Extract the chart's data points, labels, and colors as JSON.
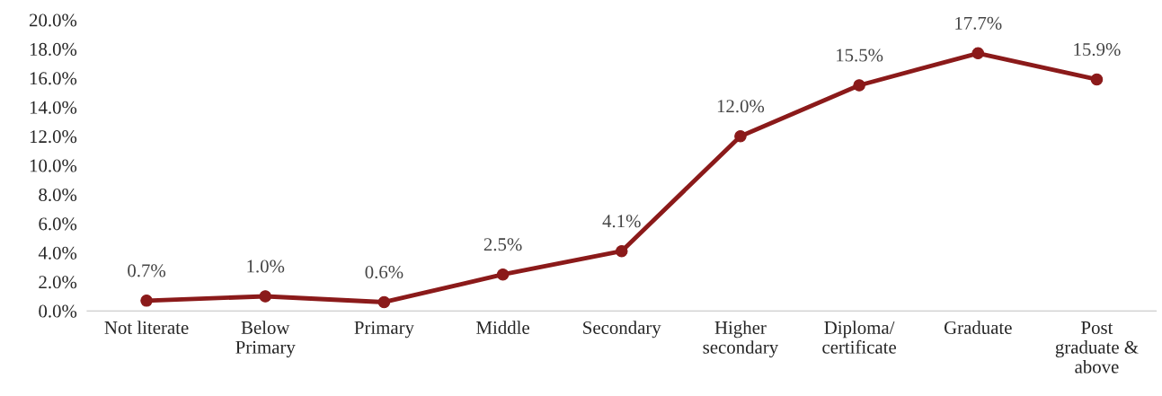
{
  "chart_data": {
    "type": "line",
    "categories": [
      "Not literate",
      "Below\nPrimary",
      "Primary",
      "Middle",
      "Secondary",
      "Higher\nsecondary",
      "Diploma/\ncertificate",
      "Graduate",
      "Post\ngraduate &\nabove"
    ],
    "series": [
      {
        "color": "#8b1a1a",
        "values": [
          0.7,
          1.0,
          0.6,
          2.5,
          4.1,
          12.0,
          15.5,
          17.7,
          15.9
        ],
        "value_labels": [
          "0.7%",
          "1.0%",
          "0.6%",
          "2.5%",
          "4.1%",
          "12.0%",
          "15.5%",
          "17.7%",
          "15.9%"
        ]
      }
    ],
    "ylim": [
      0,
      20
    ],
    "yticks": [
      {
        "value": 0,
        "label": "0.0%"
      },
      {
        "value": 2,
        "label": "2.0%"
      },
      {
        "value": 4,
        "label": "4.0%"
      },
      {
        "value": 6,
        "label": "6.0%"
      },
      {
        "value": 8,
        "label": "8.0%"
      },
      {
        "value": 10,
        "label": "10.0%"
      },
      {
        "value": 12,
        "label": "12.0%"
      },
      {
        "value": 14,
        "label": "14.0%"
      },
      {
        "value": 16,
        "label": "16.0%"
      },
      {
        "value": 18,
        "label": "18.0%"
      },
      {
        "value": 20,
        "label": "20.0%"
      }
    ],
    "marker": "circle",
    "line_style": "solid",
    "grid": false,
    "legend": false
  }
}
